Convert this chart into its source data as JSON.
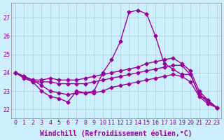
{
  "xlabel": "Windchill (Refroidissement éolien,°C)",
  "bg_color": "#cceeff",
  "line_color": "#990099",
  "grid_color": "#aaccdd",
  "ylim": [
    21.5,
    27.8
  ],
  "xlim": [
    -0.5,
    23.5
  ],
  "yticks": [
    22,
    23,
    24,
    25,
    26,
    27
  ],
  "xticks": [
    0,
    1,
    2,
    3,
    4,
    5,
    6,
    7,
    8,
    9,
    10,
    11,
    12,
    13,
    14,
    15,
    16,
    17,
    18,
    19,
    20,
    21,
    22,
    23
  ],
  "xtick_labels": [
    "0",
    "1",
    "2",
    "3",
    "4",
    "5",
    "6",
    "7",
    "8",
    "9",
    "10",
    "11",
    "12",
    "13",
    "14",
    "15",
    "16",
    "17",
    "18",
    "19",
    "20",
    "21",
    "22",
    "23"
  ],
  "line1_x": [
    0,
    1,
    2,
    3,
    4,
    5,
    6,
    7,
    8,
    9,
    10,
    11,
    12,
    13,
    14,
    15,
    16,
    17,
    18,
    19,
    20,
    21,
    22,
    23
  ],
  "line1_y": [
    24.0,
    23.8,
    23.5,
    23.0,
    22.7,
    22.6,
    22.4,
    23.0,
    22.9,
    23.0,
    24.0,
    24.7,
    25.7,
    27.3,
    27.4,
    27.2,
    26.0,
    24.5,
    24.2,
    23.9,
    23.9,
    22.8,
    22.5,
    22.1
  ],
  "line2_x": [
    0,
    1,
    2,
    3,
    4,
    5,
    6,
    7,
    8,
    9,
    10,
    11,
    12,
    13,
    14,
    15,
    16,
    17,
    18,
    19,
    20,
    21,
    22,
    23
  ],
  "line2_y": [
    24.0,
    23.7,
    23.5,
    23.5,
    23.5,
    23.4,
    23.4,
    23.4,
    23.4,
    23.5,
    23.6,
    23.7,
    23.8,
    23.9,
    24.0,
    24.1,
    24.2,
    24.3,
    24.4,
    24.4,
    23.9,
    22.8,
    22.4,
    22.1
  ],
  "line3_x": [
    0,
    1,
    2,
    3,
    4,
    5,
    6,
    7,
    8,
    9,
    10,
    11,
    12,
    13,
    14,
    15,
    16,
    17,
    18,
    19,
    20,
    21,
    22,
    23
  ],
  "line3_y": [
    24.0,
    23.8,
    23.6,
    23.6,
    23.7,
    23.6,
    23.6,
    23.6,
    23.7,
    23.8,
    23.9,
    24.0,
    24.1,
    24.2,
    24.3,
    24.5,
    24.6,
    24.7,
    24.8,
    24.5,
    24.1,
    23.0,
    22.5,
    22.1
  ],
  "line4_x": [
    0,
    1,
    2,
    3,
    4,
    5,
    6,
    7,
    8,
    9,
    10,
    11,
    12,
    13,
    14,
    15,
    16,
    17,
    18,
    19,
    20,
    21,
    22,
    23
  ],
  "line4_y": [
    24.0,
    23.8,
    23.6,
    23.3,
    23.0,
    22.9,
    22.8,
    22.9,
    22.9,
    22.9,
    23.0,
    23.2,
    23.3,
    23.4,
    23.5,
    23.6,
    23.7,
    23.8,
    23.9,
    23.8,
    23.5,
    22.7,
    22.3,
    22.1
  ],
  "marker": "D",
  "markersize": 2.5,
  "linewidth": 1.0,
  "tick_fontsize": 6,
  "xlabel_fontsize": 7
}
